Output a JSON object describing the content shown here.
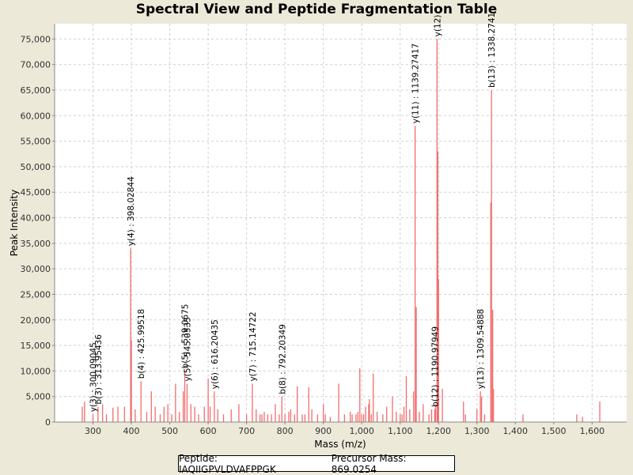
{
  "chart_data": {
    "type": "bar",
    "title": "Spectral View and Peptide Fragmentation Table",
    "xlabel": "Mass (m/z)",
    "ylabel": "Peak Intensity",
    "xlim": [
      200,
      1690
    ],
    "ylim": [
      0,
      78000
    ],
    "xticks": [
      300,
      400,
      500,
      600,
      700,
      800,
      900,
      1000,
      1100,
      1200,
      1300,
      1400,
      1500,
      1600
    ],
    "xtick_labels": [
      "300",
      "400",
      "500",
      "600",
      "700",
      "800",
      "900",
      "1,000",
      "1,100",
      "1,200",
      "1,300",
      "1,400",
      "1,500",
      "1,600"
    ],
    "yticks": [
      0,
      5000,
      10000,
      15000,
      20000,
      25000,
      30000,
      35000,
      40000,
      45000,
      50000,
      55000,
      60000,
      65000,
      70000,
      75000
    ],
    "ytick_labels": [
      "0",
      "5,000",
      "10,000",
      "15,000",
      "20,000",
      "25,000",
      "30,000",
      "35,000",
      "40,000",
      "45,000",
      "50,000",
      "55,000",
      "60,000",
      "65,000",
      "70,000",
      "75,000"
    ],
    "grid": true,
    "color": "#f26d6d",
    "peaks": [
      [
        272,
        3000
      ],
      [
        278,
        4000
      ],
      [
        300,
        1500
      ],
      [
        313,
        3000
      ],
      [
        325,
        3500
      ],
      [
        335,
        1500
      ],
      [
        352,
        2800
      ],
      [
        365,
        3000
      ],
      [
        382,
        3000
      ],
      [
        398,
        34000
      ],
      [
        400,
        16000
      ],
      [
        410,
        2500
      ],
      [
        425,
        8000
      ],
      [
        440,
        2000
      ],
      [
        452,
        6000
      ],
      [
        462,
        3000
      ],
      [
        475,
        1500
      ],
      [
        485,
        3000
      ],
      [
        495,
        3500
      ],
      [
        505,
        1500
      ],
      [
        515,
        7500
      ],
      [
        525,
        2000
      ],
      [
        535,
        6000
      ],
      [
        539,
        10000
      ],
      [
        545,
        7500
      ],
      [
        555,
        3500
      ],
      [
        565,
        3000
      ],
      [
        575,
        1500
      ],
      [
        590,
        3000
      ],
      [
        600,
        8500
      ],
      [
        605,
        3000
      ],
      [
        616,
        6000
      ],
      [
        625,
        2500
      ],
      [
        640,
        1500
      ],
      [
        660,
        2500
      ],
      [
        680,
        3500
      ],
      [
        700,
        1500
      ],
      [
        715,
        7500
      ],
      [
        725,
        2500
      ],
      [
        735,
        1500
      ],
      [
        740,
        1500
      ],
      [
        746,
        2000
      ],
      [
        755,
        1500
      ],
      [
        765,
        1500
      ],
      [
        775,
        3500
      ],
      [
        785,
        1500
      ],
      [
        792,
        5000
      ],
      [
        800,
        1500
      ],
      [
        810,
        2000
      ],
      [
        815,
        2500
      ],
      [
        825,
        1500
      ],
      [
        832,
        7000
      ],
      [
        845,
        1500
      ],
      [
        852,
        1500
      ],
      [
        862,
        6800
      ],
      [
        870,
        2500
      ],
      [
        885,
        1500
      ],
      [
        900,
        3500
      ],
      [
        905,
        1500
      ],
      [
        918,
        1000
      ],
      [
        940,
        7500
      ],
      [
        955,
        1500
      ],
      [
        970,
        2000
      ],
      [
        975,
        1500
      ],
      [
        985,
        1500
      ],
      [
        990,
        2000
      ],
      [
        995,
        10500
      ],
      [
        1000,
        1500
      ],
      [
        1005,
        1500
      ],
      [
        1010,
        3000
      ],
      [
        1018,
        3500
      ],
      [
        1020,
        4500
      ],
      [
        1025,
        1500
      ],
      [
        1030,
        9500
      ],
      [
        1040,
        2000
      ],
      [
        1055,
        1500
      ],
      [
        1065,
        3000
      ],
      [
        1080,
        5000
      ],
      [
        1090,
        2000
      ],
      [
        1100,
        1500
      ],
      [
        1105,
        1500
      ],
      [
        1110,
        3000
      ],
      [
        1116,
        9000
      ],
      [
        1125,
        2500
      ],
      [
        1135,
        6000
      ],
      [
        1139,
        58000
      ],
      [
        1142,
        22500
      ],
      [
        1150,
        2000
      ],
      [
        1160,
        3500
      ],
      [
        1175,
        1500
      ],
      [
        1182,
        2500
      ],
      [
        1190,
        2500
      ],
      [
        1192,
        3500
      ],
      [
        1196,
        75000
      ],
      [
        1198,
        53000
      ],
      [
        1200,
        28000
      ],
      [
        1210,
        6500
      ],
      [
        1265,
        4000
      ],
      [
        1270,
        1500
      ],
      [
        1300,
        2500
      ],
      [
        1309,
        6000
      ],
      [
        1312,
        5000
      ],
      [
        1320,
        1500
      ],
      [
        1336,
        43000
      ],
      [
        1338,
        65000
      ],
      [
        1341,
        22000
      ],
      [
        1343,
        6500
      ],
      [
        1420,
        1500
      ],
      [
        1560,
        1500
      ],
      [
        1575,
        1000
      ],
      [
        1620,
        4000
      ]
    ],
    "annotations": [
      {
        "text": "y(3) : 300.09045",
        "x": 300,
        "y": 1500
      },
      {
        "text": "b(3) : 313.95436",
        "x": 313,
        "y": 3000
      },
      {
        "text": "y(4) : 398.02844",
        "x": 398,
        "y": 34000
      },
      {
        "text": "b(4) : 425.99518",
        "x": 425,
        "y": 8000
      },
      {
        "text": "b(5) : 539.0675",
        "x": 539,
        "y": 10000
      },
      {
        "text": "y(5) : 545.0535",
        "x": 545,
        "y": 7500
      },
      {
        "text": "y(6) : 616.20435",
        "x": 616,
        "y": 6000
      },
      {
        "text": "y(7) : 715.14722",
        "x": 715,
        "y": 7500
      },
      {
        "text": "b(8) : 792.20349",
        "x": 792,
        "y": 5000
      },
      {
        "text": "y(11) : 1139.27417",
        "x": 1139,
        "y": 58000
      },
      {
        "text": "b(12) : 1190.97949",
        "x": 1190,
        "y": 2500
      },
      {
        "text": "y(12)",
        "x": 1196,
        "y": 75000
      },
      {
        "text": "y(13) : 1309.54888",
        "x": 1309,
        "y": 6000
      },
      {
        "text": "b(13) : 1338.2741",
        "x": 1338,
        "y": 65000
      }
    ]
  },
  "footer": {
    "peptide": "Peptide: IAQIIGPVLDVAFPPGK",
    "precursor": "Precursor Mass: 869.0254"
  }
}
